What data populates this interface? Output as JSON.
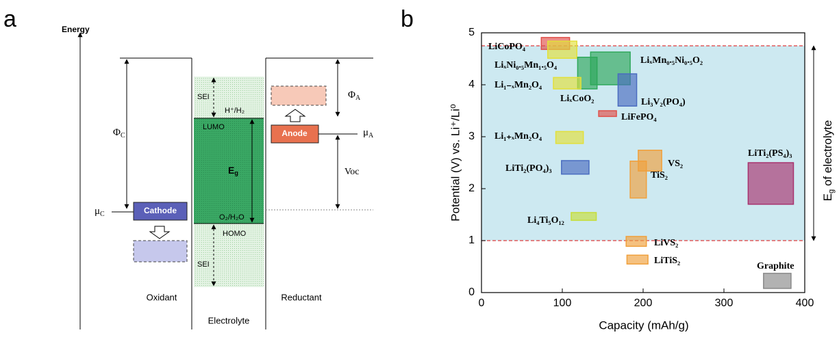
{
  "panel_labels": {
    "a": "a",
    "b": "b"
  },
  "diagram": {
    "axis_label": "Energy",
    "phi_c": {
      "symbol": "Φ",
      "sub": "C"
    },
    "mu_c": {
      "symbol": "μ",
      "sub": "C"
    },
    "cathode": "Cathode",
    "sei_top": "SEI",
    "h_couple": "H⁺/H₂",
    "lumo": "LUMO",
    "eg": {
      "symbol": "E",
      "sub": "g"
    },
    "o_couple": "O₂/H₂O",
    "homo": "HOMO",
    "sei_bottom": "SEI",
    "phi_a": {
      "symbol": "Φ",
      "sub": "A"
    },
    "anode": "Anode",
    "mu_a": {
      "symbol": "μ",
      "sub": "A"
    },
    "voc": "Voc",
    "oxidant": "Oxidant",
    "electrolyte": "Electrolyte",
    "reductant": "Reductant"
  },
  "chart_data": {
    "type": "range-box",
    "x_label": "Capacity (mAh/g)",
    "y_label": "Potential (V) vs. Li⁺/Li⁰",
    "xlim": [
      0,
      400
    ],
    "xticks": [
      0,
      100,
      200,
      300,
      400
    ],
    "ylim": [
      0,
      5
    ],
    "yticks": [
      0,
      1,
      2,
      3,
      4,
      5
    ],
    "reference_lines": [
      {
        "value": 4.75,
        "color": "#e03c3c"
      },
      {
        "value": 1.0,
        "color": "#e03c3c"
      }
    ],
    "shade_color": "#cde9f1",
    "annotation": {
      "symbol": "E",
      "sub": "g",
      "text": " of electrolyte"
    },
    "series": [
      {
        "name": "LiCoPO₄",
        "color": "#e0504a",
        "x": [
          74,
          109
        ],
        "y": [
          4.68,
          4.91
        ]
      },
      {
        "name": "LiₓNi₀.₅Mn₁.₅O₄",
        "color": "#e2e03a",
        "x": [
          82,
          118
        ],
        "y": [
          4.51,
          4.84
        ]
      },
      {
        "name": "LiₓMn₀.₅Ni₀.₅O₂",
        "color": "#2ea85a",
        "x": [
          135,
          184
        ],
        "y": [
          4.0,
          4.63
        ]
      },
      {
        "name": "LiₓCoO₂",
        "color": "#2ea85a",
        "x": [
          119,
          143
        ],
        "y": [
          3.92,
          4.53
        ]
      },
      {
        "name": "Li₁₋ₓMn₂O₄",
        "color": "#e2e03a",
        "x": [
          89,
          123
        ],
        "y": [
          3.92,
          4.14
        ]
      },
      {
        "name": "Li₃V₂(PO₄)",
        "color": "#4a6cc0",
        "x": [
          169,
          192
        ],
        "y": [
          3.59,
          4.21
        ]
      },
      {
        "name": "LiFePO₄",
        "color": "#e0504a",
        "x": [
          145,
          167
        ],
        "y": [
          3.39,
          3.5
        ]
      },
      {
        "name": "Li₁₊ₓMn₂O₄",
        "color": "#e2e03a",
        "x": [
          92,
          126
        ],
        "y": [
          2.87,
          3.1
        ]
      },
      {
        "name": "LiTi₂(PO₄)₃",
        "color": "#4a6cc0",
        "x": [
          99,
          133
        ],
        "y": [
          2.28,
          2.54
        ]
      },
      {
        "name": "VS₂",
        "color": "#f0a03c",
        "x": [
          194,
          223
        ],
        "y": [
          2.34,
          2.74
        ]
      },
      {
        "name": "TiS₂",
        "color": "#f0a03c",
        "x": [
          184,
          204
        ],
        "y": [
          1.82,
          2.53
        ]
      },
      {
        "name": "LiTi₂(PS₄)₃",
        "color": "#a8326e",
        "x": [
          330,
          386
        ],
        "y": [
          1.7,
          2.5
        ]
      },
      {
        "name": "Li₄Ti₅O₁₂",
        "color": "#c6de3a",
        "x": [
          111,
          142
        ],
        "y": [
          1.39,
          1.54
        ]
      },
      {
        "name": "LiVS₂",
        "color": "#f0a03c",
        "x": [
          179,
          204
        ],
        "y": [
          0.89,
          1.08
        ]
      },
      {
        "name": "LiTiS₂",
        "color": "#f0a03c",
        "x": [
          180,
          206
        ],
        "y": [
          0.55,
          0.72
        ]
      },
      {
        "name": "Graphite",
        "color": "#888888",
        "x": [
          349,
          383
        ],
        "y": [
          0.08,
          0.37
        ]
      }
    ]
  }
}
